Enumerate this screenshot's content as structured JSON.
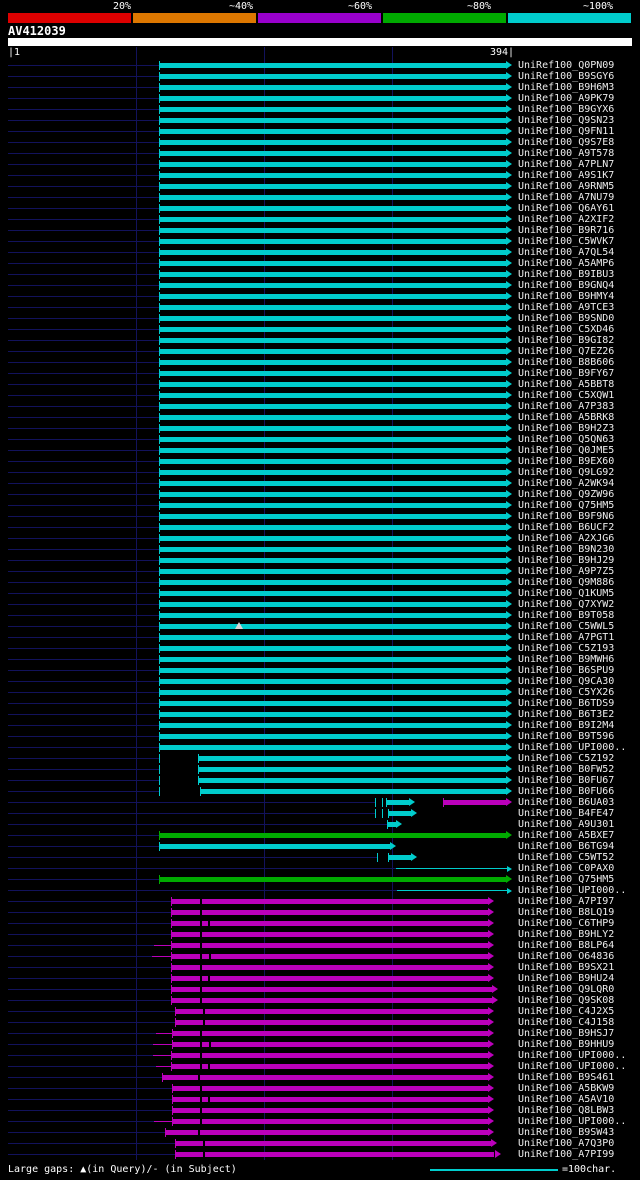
{
  "title": "AV412039",
  "key": {
    "labels": [
      "20%",
      "~40%",
      "~60%",
      "~80%",
      "~100%"
    ],
    "colors": [
      "#dd0000",
      "#dd7700",
      "#9900cc",
      "#00aa00",
      "#00cccc"
    ]
  },
  "ruler": {
    "start_label": "|1",
    "end_label": "394|"
  },
  "footer": {
    "gaps_note": "Large gaps: ▲(in Query)/- (in Subject)",
    "scale_label": "=100char.",
    "scale_chars": 100
  },
  "chart_data": {
    "type": "alignment-overview",
    "query_name": "AV412039",
    "query_length": 394,
    "colors": {
      "cyan": "#00cccc",
      "magenta": "#bb00bb",
      "green": "#00aa00"
    },
    "gridlines": [
      100,
      200,
      300
    ],
    "default_segment": {
      "s": 118,
      "e": 394,
      "c": "cyan",
      "arrow": true
    },
    "hits": [
      {
        "label": "UniRef100_Q0PN09"
      },
      {
        "label": "UniRef100_B9SGY6"
      },
      {
        "label": "UniRef100_B9H6M3"
      },
      {
        "label": "UniRef100_A9PK79"
      },
      {
        "label": "UniRef100_B9GYX6"
      },
      {
        "label": "UniRef100_Q9SN23"
      },
      {
        "label": "UniRef100_Q9FN11"
      },
      {
        "label": "UniRef100_Q9S7E8"
      },
      {
        "label": "UniRef100_A9T578"
      },
      {
        "label": "UniRef100_A7PLN7"
      },
      {
        "label": "UniRef100_A9S1K7"
      },
      {
        "label": "UniRef100_A9RNM5"
      },
      {
        "label": "UniRef100_A7NU79"
      },
      {
        "label": "UniRef100_Q6AY61"
      },
      {
        "label": "UniRef100_A2XIF2"
      },
      {
        "label": "UniRef100_B9R716"
      },
      {
        "label": "UniRef100_C5WVK7"
      },
      {
        "label": "UniRef100_A7QL54"
      },
      {
        "label": "UniRef100_A5AMP6"
      },
      {
        "label": "UniRef100_B9IBU3"
      },
      {
        "label": "UniRef100_B9GNQ4"
      },
      {
        "label": "UniRef100_B9HMY4"
      },
      {
        "label": "UniRef100_A9TCE3"
      },
      {
        "label": "UniRef100_B9SND0"
      },
      {
        "label": "UniRef100_C5XD46"
      },
      {
        "label": "UniRef100_B9GI82"
      },
      {
        "label": "UniRef100_Q7EZ26"
      },
      {
        "label": "UniRef100_B8B606"
      },
      {
        "label": "UniRef100_B9FY67"
      },
      {
        "label": "UniRef100_A5BBT8"
      },
      {
        "label": "UniRef100_C5XQW1"
      },
      {
        "label": "UniRef100_A7P383"
      },
      {
        "label": "UniRef100_A5BRK8"
      },
      {
        "label": "UniRef100_B9H2Z3"
      },
      {
        "label": "UniRef100_Q5QN63"
      },
      {
        "label": "UniRef100_Q0JME5"
      },
      {
        "label": "UniRef100_B9EX60"
      },
      {
        "label": "UniRef100_Q9LG92"
      },
      {
        "label": "UniRef100_A2WK94"
      },
      {
        "label": "UniRef100_Q9ZW96"
      },
      {
        "label": "UniRef100_Q75HM5"
      },
      {
        "label": "UniRef100_B9F9N6"
      },
      {
        "label": "UniRef100_B6UCF2"
      },
      {
        "label": "UniRef100_A2XJG6"
      },
      {
        "label": "UniRef100_B9N230"
      },
      {
        "label": "UniRef100_B9HJ29"
      },
      {
        "label": "UniRef100_A9P7Z5"
      },
      {
        "label": "UniRef100_Q9M886"
      },
      {
        "label": "UniRef100_Q1KUM5"
      },
      {
        "label": "UniRef100_Q7XYW2"
      },
      {
        "label": "UniRef100_B9T058"
      },
      {
        "label": "UniRef100_C5WWL5",
        "marker": 180
      },
      {
        "label": "UniRef100_A7PGT1"
      },
      {
        "label": "UniRef100_C5Z193"
      },
      {
        "label": "UniRef100_B9MWH6"
      },
      {
        "label": "UniRef100_B6SPU9"
      },
      {
        "label": "UniRef100_Q9CA30"
      },
      {
        "label": "UniRef100_C5YX26"
      },
      {
        "label": "UniRef100_B6TDS9"
      },
      {
        "label": "UniRef100_B6T3E2"
      },
      {
        "label": "UniRef100_B9I2M4"
      },
      {
        "label": "UniRef100_B9T596"
      },
      {
        "label": "UniRef100_UPI000.."
      },
      {
        "label": "UniRef100_C5Z192",
        "ticks": [
          118
        ],
        "segs": [
          {
            "s": 148,
            "e": 394,
            "c": "cyan",
            "arrow": true
          }
        ]
      },
      {
        "label": "UniRef100_B0FW52",
        "ticks": [
          118
        ],
        "segs": [
          {
            "s": 148,
            "e": 394,
            "c": "cyan",
            "arrow": true
          }
        ]
      },
      {
        "label": "UniRef100_B0FU67",
        "ticks": [
          118
        ],
        "segs": [
          {
            "s": 148,
            "e": 394,
            "c": "cyan",
            "arrow": true
          }
        ]
      },
      {
        "label": "UniRef100_B0FU66",
        "ticks": [
          118
        ],
        "segs": [
          {
            "s": 150,
            "e": 394,
            "c": "cyan",
            "arrow": true
          }
        ]
      },
      {
        "label": "UniRef100_B6UA03",
        "ticks": [
          287,
          292
        ],
        "segs": [
          {
            "s": 295,
            "e": 318,
            "c": "cyan",
            "arrow": true
          },
          {
            "s": 340,
            "e": 394,
            "c": "magenta",
            "arrow": true
          }
        ]
      },
      {
        "label": "UniRef100_B4FE47",
        "ticks": [
          287,
          292
        ],
        "segs": [
          {
            "s": 297,
            "e": 320,
            "c": "cyan",
            "arrow": true
          }
        ]
      },
      {
        "label": "UniRef100_A9U301",
        "segs": [
          {
            "s": 296,
            "e": 308,
            "c": "cyan",
            "arrow": true
          }
        ]
      },
      {
        "label": "UniRef100_A5BXE7",
        "segs": [
          {
            "s": 118,
            "e": 394,
            "c": "green",
            "arrow": true
          }
        ]
      },
      {
        "label": "UniRef100_B6TG94",
        "segs": [
          {
            "s": 118,
            "e": 303,
            "c": "cyan",
            "arrow": true
          }
        ]
      },
      {
        "label": "UniRef100_C5WT52",
        "ticks": [
          288
        ],
        "segs": [
          {
            "s": 297,
            "e": 320,
            "c": "cyan",
            "arrow": true
          }
        ]
      },
      {
        "label": "UniRef100_C0PAX0",
        "segs": [
          {
            "s": 303,
            "e": 394,
            "c": "cyan",
            "arrow": true,
            "thin": true
          }
        ]
      },
      {
        "label": "UniRef100_Q75HM5",
        "segs": [
          {
            "s": 118,
            "e": 394,
            "c": "green",
            "arrow": true
          }
        ]
      },
      {
        "label": "UniRef100_UPI000..",
        "segs": [
          {
            "s": 304,
            "e": 394,
            "c": "cyan",
            "arrow": true,
            "thin": true
          }
        ]
      },
      {
        "label": "UniRef100_A7PI97",
        "gaps": [
          150
        ],
        "segs": [
          {
            "s": 127,
            "e": 380,
            "c": "magenta",
            "arrow": true
          }
        ]
      },
      {
        "label": "UniRef100_B8LQ19",
        "gaps": [
          150
        ],
        "segs": [
          {
            "s": 127,
            "e": 380,
            "c": "magenta",
            "arrow": true
          }
        ]
      },
      {
        "label": "UniRef100_C6THP9",
        "gaps": [
          150,
          156
        ],
        "segs": [
          {
            "s": 127,
            "e": 380,
            "c": "magenta",
            "arrow": true
          }
        ]
      },
      {
        "label": "UniRef100_B9HLY2",
        "gaps": [
          150
        ],
        "segs": [
          {
            "s": 127,
            "e": 380,
            "c": "magenta",
            "arrow": true
          }
        ]
      },
      {
        "label": "UniRef100_B8LP64",
        "pre": {
          "s": 114,
          "e": 127
        },
        "gaps": [
          150
        ],
        "segs": [
          {
            "s": 127,
            "e": 380,
            "c": "magenta",
            "arrow": true
          }
        ]
      },
      {
        "label": "UniRef100_O64836",
        "pre": {
          "s": 112,
          "e": 127
        },
        "gaps": [
          150,
          157
        ],
        "segs": [
          {
            "s": 127,
            "e": 380,
            "c": "magenta",
            "arrow": true
          }
        ]
      },
      {
        "label": "UniRef100_B9SX21",
        "gaps": [
          150
        ],
        "segs": [
          {
            "s": 127,
            "e": 380,
            "c": "magenta",
            "arrow": true
          }
        ]
      },
      {
        "label": "UniRef100_B9HU24",
        "gaps": [
          150,
          156
        ],
        "segs": [
          {
            "s": 127,
            "e": 380,
            "c": "magenta",
            "arrow": true
          }
        ]
      },
      {
        "label": "UniRef100_Q9LQR0",
        "gaps": [
          150
        ],
        "segs": [
          {
            "s": 127,
            "e": 383,
            "c": "magenta",
            "arrow": true
          }
        ]
      },
      {
        "label": "UniRef100_Q9SK08",
        "gaps": [
          150
        ],
        "segs": [
          {
            "s": 127,
            "e": 383,
            "c": "magenta",
            "arrow": true
          }
        ]
      },
      {
        "label": "UniRef100_C4J2X5",
        "gaps": [
          152
        ],
        "segs": [
          {
            "s": 130,
            "e": 380,
            "c": "magenta",
            "arrow": true
          }
        ]
      },
      {
        "label": "UniRef100_C4J158",
        "gaps": [
          152
        ],
        "segs": [
          {
            "s": 130,
            "e": 380,
            "c": "magenta",
            "arrow": true
          }
        ]
      },
      {
        "label": "UniRef100_B9HSJ7",
        "pre": {
          "s": 115,
          "e": 128
        },
        "gaps": [
          150
        ],
        "segs": [
          {
            "s": 128,
            "e": 380,
            "c": "magenta",
            "arrow": true
          }
        ]
      },
      {
        "label": "UniRef100_B9HHU9",
        "pre": {
          "s": 113,
          "e": 128
        },
        "gaps": [
          150,
          157
        ],
        "segs": [
          {
            "s": 128,
            "e": 380,
            "c": "magenta",
            "arrow": true
          }
        ]
      },
      {
        "label": "UniRef100_UPI000..",
        "pre": {
          "s": 113,
          "e": 127
        },
        "gaps": [
          150
        ],
        "segs": [
          {
            "s": 127,
            "e": 380,
            "c": "magenta",
            "arrow": true
          }
        ]
      },
      {
        "label": "UniRef100_UPI000..",
        "pre": {
          "s": 115,
          "e": 127
        },
        "gaps": [
          150,
          156
        ],
        "segs": [
          {
            "s": 127,
            "e": 380,
            "c": "magenta",
            "arrow": true
          }
        ]
      },
      {
        "label": "UniRef100_B9S461",
        "gaps": [
          148
        ],
        "segs": [
          {
            "s": 120,
            "e": 380,
            "c": "magenta",
            "arrow": true
          }
        ]
      },
      {
        "label": "UniRef100_A5BKW9",
        "gaps": [
          150
        ],
        "segs": [
          {
            "s": 128,
            "e": 380,
            "c": "magenta",
            "arrow": true
          }
        ]
      },
      {
        "label": "UniRef100_A5AV10",
        "gaps": [
          150,
          156
        ],
        "segs": [
          {
            "s": 128,
            "e": 380,
            "c": "magenta",
            "arrow": true
          }
        ]
      },
      {
        "label": "UniRef100_Q8LBW3",
        "gaps": [
          150
        ],
        "segs": [
          {
            "s": 128,
            "e": 380,
            "c": "magenta",
            "arrow": true
          }
        ]
      },
      {
        "label": "UniRef100_UPI000..",
        "pre": {
          "s": 114,
          "e": 128
        },
        "gaps": [
          150
        ],
        "segs": [
          {
            "s": 128,
            "e": 380,
            "c": "magenta",
            "arrow": true
          }
        ]
      },
      {
        "label": "UniRef100_B9SW43",
        "gaps": [
          148
        ],
        "segs": [
          {
            "s": 122,
            "e": 380,
            "c": "magenta",
            "arrow": true
          }
        ]
      },
      {
        "label": "UniRef100_A7Q3P0",
        "gaps": [
          152
        ],
        "segs": [
          {
            "s": 130,
            "e": 382,
            "c": "magenta",
            "arrow": true
          }
        ]
      },
      {
        "label": "UniRef100_A7PI99",
        "gaps": [
          152
        ],
        "segs": [
          {
            "s": 130,
            "e": 385,
            "c": "magenta",
            "arrow": true
          }
        ]
      }
    ]
  }
}
